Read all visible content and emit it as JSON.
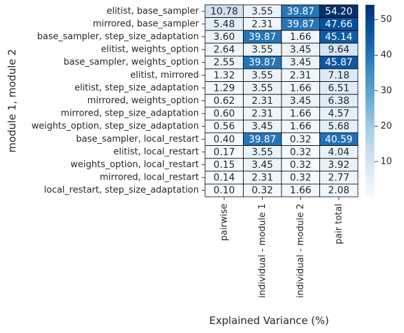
{
  "chart_data": {
    "type": "heatmap",
    "title": "",
    "xlabel": "Explained Variance (%)",
    "ylabel": "module 1, module 2",
    "columns": [
      "pairwise",
      "individual - module 1",
      "individual - module 2",
      "pair total"
    ],
    "rows": [
      "elitist, base_sampler",
      "mirrored, base_sampler",
      "base_sampler, step_size_adaptation",
      "elitist, weights_option",
      "base_sampler, weights_option",
      "elitist, mirrored",
      "elitist, step_size_adaptation",
      "mirrored, weights_option",
      "mirrored, step_size_adaptation",
      "weights_option, step_size_adaptation",
      "base_sampler, local_restart",
      "elitist, local_restart",
      "weights_option, local_restart",
      "mirrored, local_restart",
      "local_restart, step_size_adaptation"
    ],
    "values": [
      [
        10.78,
        3.55,
        39.87,
        54.2
      ],
      [
        5.48,
        2.31,
        39.87,
        47.66
      ],
      [
        3.6,
        39.87,
        1.66,
        45.14
      ],
      [
        2.64,
        3.55,
        3.45,
        9.64
      ],
      [
        2.55,
        39.87,
        3.45,
        45.87
      ],
      [
        1.32,
        3.55,
        2.31,
        7.18
      ],
      [
        1.29,
        3.55,
        1.66,
        6.51
      ],
      [
        0.62,
        2.31,
        3.45,
        6.38
      ],
      [
        0.6,
        2.31,
        1.66,
        4.57
      ],
      [
        0.56,
        3.45,
        1.66,
        5.68
      ],
      [
        0.4,
        39.87,
        0.32,
        40.59
      ],
      [
        0.17,
        3.55,
        0.32,
        4.04
      ],
      [
        0.15,
        3.45,
        0.32,
        3.92
      ],
      [
        0.14,
        2.31,
        0.32,
        2.77
      ],
      [
        0.1,
        0.32,
        1.66,
        2.08
      ]
    ],
    "color_scale": {
      "colormap": "Blues",
      "vmin": 0.1,
      "vmax": 54.2,
      "ticks": [
        10,
        20,
        30,
        40,
        50
      ],
      "colors": [
        "#f7fbff",
        "#deebf7",
        "#c6dbef",
        "#9ecae1",
        "#6baed6",
        "#4292c6",
        "#2171b5",
        "#08519c",
        "#08306b"
      ]
    },
    "annotations": "cell values shown with two decimals",
    "grid": false
  }
}
